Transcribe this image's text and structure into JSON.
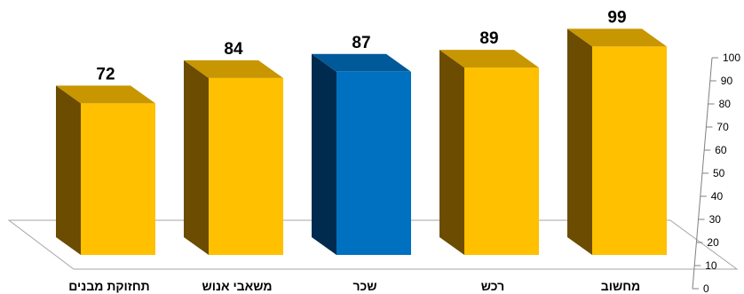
{
  "chart_data": {
    "type": "bar",
    "categories": [
      "תחזוקת מבנים",
      "משאבי אנוש",
      "שכר",
      "רכש",
      "מחשוב"
    ],
    "values": [
      72,
      84,
      87,
      89,
      99
    ],
    "title": "",
    "xlabel": "",
    "ylabel": "",
    "ylim": [
      0,
      100
    ],
    "yticks": [
      0,
      10,
      20,
      30,
      40,
      50,
      60,
      70,
      80,
      90,
      100
    ],
    "axis_position": "right",
    "grid": false,
    "highlight_index": 2,
    "colors": {
      "bar_front": "#FFC000",
      "bar_side": "#6B4C00",
      "bar_top": "#C79600",
      "highlight_front": "#0070C0",
      "highlight_side": "#002B4F",
      "highlight_top": "#005A99",
      "floor_stroke": "#A6A6A6",
      "axis_stroke": "#808080"
    }
  }
}
